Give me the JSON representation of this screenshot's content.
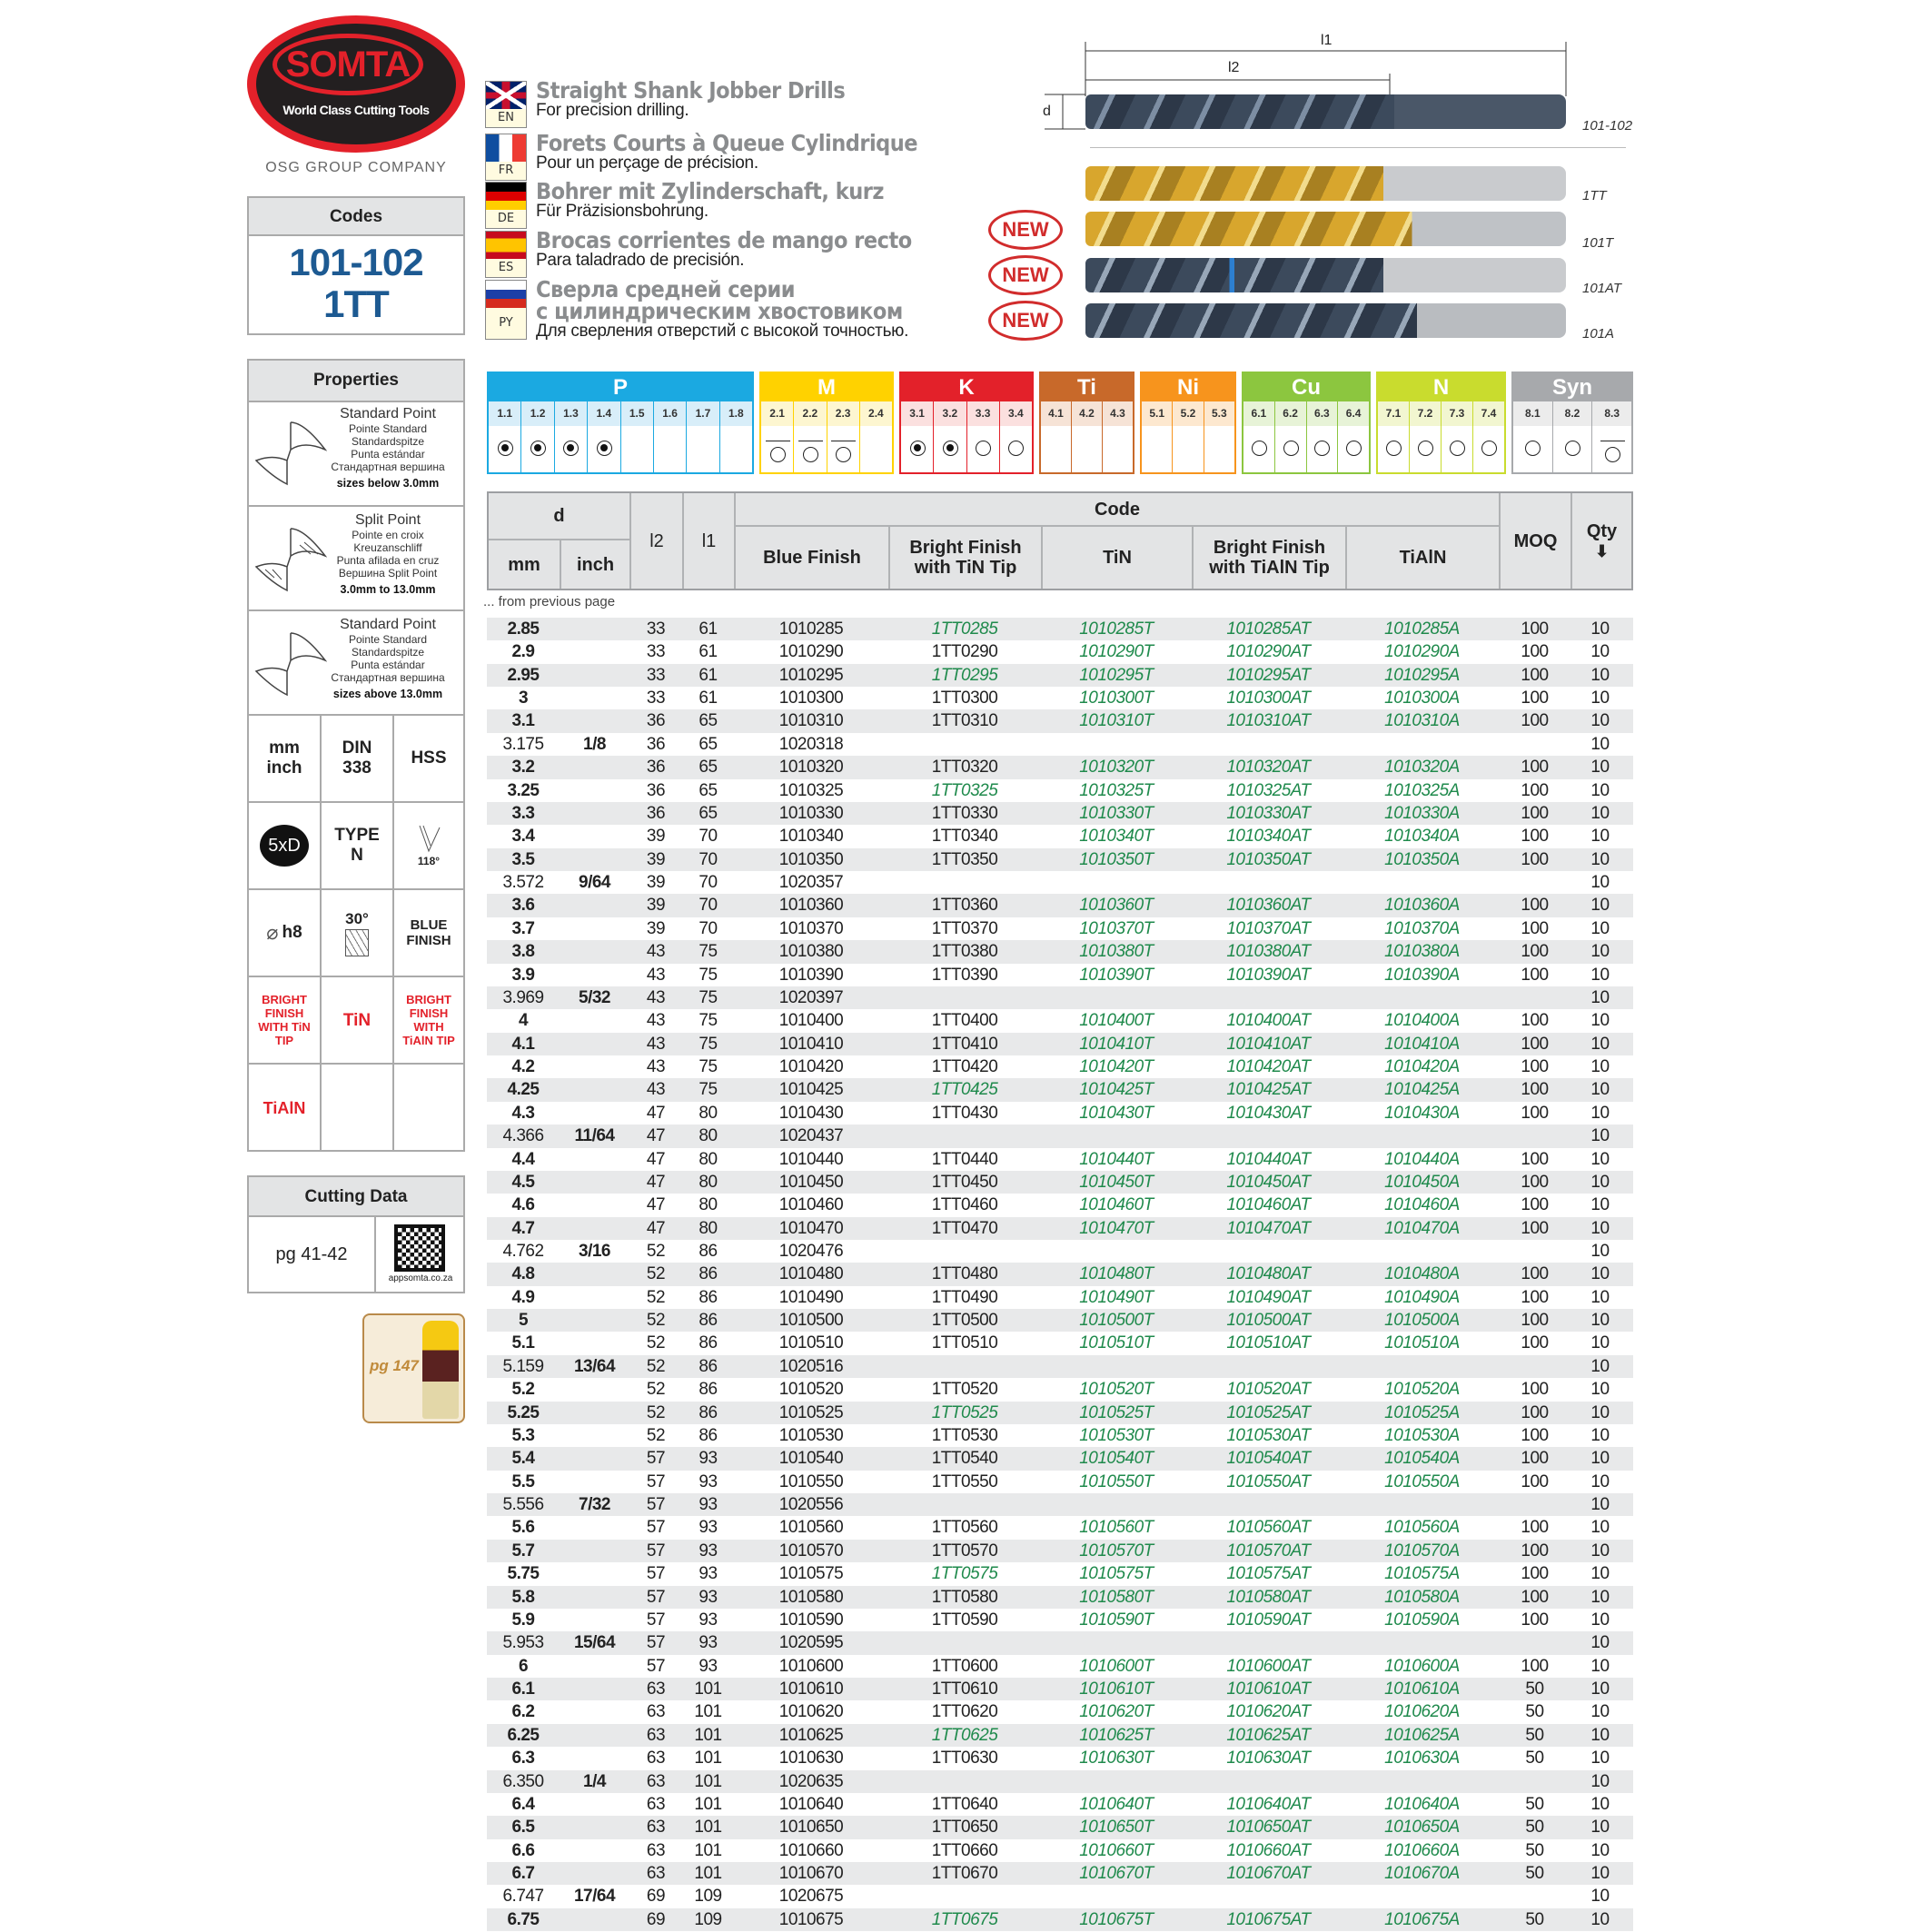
{
  "logo": {
    "brand": "SOMTA",
    "tagline": "World Class Cutting Tools",
    "group": "OSG GROUP COMPANY"
  },
  "codes": {
    "title": "Codes",
    "line1": "101-102",
    "line2": "1TT"
  },
  "titles": [
    {
      "lang": "EN",
      "title": "Straight Shank Jobber Drills",
      "subtitle": "For precision drilling."
    },
    {
      "lang": "FR",
      "title": "Forets Courts à Queue Cylindrique",
      "subtitle": "Pour un perçage de précision."
    },
    {
      "lang": "DE",
      "title": "Bohrer mit Zylinderschaft, kurz",
      "subtitle": "Für Präzisionsbohrung."
    },
    {
      "lang": "ES",
      "title": "Brocas corrientes de mango recto",
      "subtitle": "Para taladrado de precisión."
    },
    {
      "lang": "PY",
      "title": "Сверла средней серии",
      "title2": "с цилиндрическим хвостовиком",
      "subtitle": "Для сверления отверстий с высокой точностью."
    }
  ],
  "diagram": {
    "l1": "l1",
    "l2": "l2",
    "d": "d"
  },
  "drills": [
    {
      "label": "101-102",
      "new": false
    },
    {
      "label": "1TT",
      "new": false
    },
    {
      "label": "101T",
      "new": true
    },
    {
      "label": "101AT",
      "new": true
    },
    {
      "label": "101A",
      "new": true
    }
  ],
  "new_badge": "NEW",
  "properties": {
    "title": "Properties",
    "points": [
      {
        "name": "Standard Point",
        "fr": "Pointe Standard",
        "de": "Standardspitze",
        "es": "Punta estándar",
        "ru": "Стандартная вершина",
        "range": "sizes below 3.0mm"
      },
      {
        "name": "Split Point",
        "fr": "Pointe en croix",
        "de": "Kreuzanschliff",
        "es": "Punta afilada en cruz",
        "ru": "Вершина Split Point",
        "range": "3.0mm to 13.0mm"
      },
      {
        "name": "Standard Point",
        "fr": "Pointe Standard",
        "de": "Standardspitze",
        "es": "Punta estándar",
        "ru": "Стандартная вершина",
        "range": "sizes above 13.0mm"
      }
    ],
    "units": "mm inch",
    "standard": "DIN 338",
    "material": "HSS",
    "length": "5xD",
    "type": "TYPE N",
    "angle": "118°",
    "tolerance": "h8",
    "helix": "30°",
    "finish_blue": "BLUE FINISH",
    "finish_bright_tin": "BRIGHT FINISH WITH TiN TIP",
    "finish_tin": "TiN",
    "finish_bright_tialn": "BRIGHT FINISH WITH TiAlN TIP",
    "finish_tialn": "TiAlN"
  },
  "cutting_data": {
    "title": "Cutting Data",
    "pages": "pg 41-42",
    "qr_caption": "appsomta.co.za"
  },
  "spray": {
    "page": "pg 147"
  },
  "materials": [
    {
      "group": "P",
      "color": "#1ba9e1",
      "tint": "#d8eef9",
      "subs": [
        "1.1",
        "1.2",
        "1.3",
        "1.4",
        "1.5",
        "1.6",
        "1.7",
        "1.8"
      ],
      "marks": [
        "filled",
        "filled",
        "filled",
        "filled",
        "",
        "",
        "",
        ""
      ]
    },
    {
      "group": "M",
      "color": "#ffd200",
      "tint": "#fdf6d0",
      "subs": [
        "2.1",
        "2.2",
        "2.3",
        "2.4"
      ],
      "marks": [
        "open-under",
        "open-under",
        "open-under",
        ""
      ]
    },
    {
      "group": "K",
      "color": "#e3212a",
      "tint": "#fbe0df",
      "subs": [
        "3.1",
        "3.2",
        "3.3",
        "3.4"
      ],
      "marks": [
        "filled",
        "filled",
        "open",
        "open"
      ]
    },
    {
      "group": "Ti",
      "color": "#c8692a",
      "tint": "#f6e3d6",
      "subs": [
        "4.1",
        "4.2",
        "4.3"
      ],
      "marks": [
        "",
        "",
        ""
      ]
    },
    {
      "group": "Ni",
      "color": "#f7941d",
      "tint": "#fde8cf",
      "subs": [
        "5.1",
        "5.2",
        "5.3"
      ],
      "marks": [
        "",
        "",
        ""
      ]
    },
    {
      "group": "Cu",
      "color": "#8cc63f",
      "tint": "#e7f3d7",
      "subs": [
        "6.1",
        "6.2",
        "6.3",
        "6.4"
      ],
      "marks": [
        "open",
        "open",
        "open",
        "open"
      ]
    },
    {
      "group": "N",
      "color": "#c9dc2e",
      "tint": "#f2f6d0",
      "subs": [
        "7.1",
        "7.2",
        "7.3",
        "7.4"
      ],
      "marks": [
        "open",
        "open",
        "open",
        "open"
      ]
    },
    {
      "group": "Syn",
      "color": "#a7a9ac",
      "tint": "#ececec",
      "subs": [
        "8.1",
        "8.2",
        "8.3"
      ],
      "marks": [
        "open",
        "open",
        "open-under"
      ]
    }
  ],
  "table": {
    "headers": {
      "d": "d",
      "mm": "mm",
      "inch": "inch",
      "l2": "l2",
      "l1": "l1",
      "code": "Code",
      "blue": "Blue Finish",
      "bright_tin": "Bright Finish with TiN Tip",
      "tin": "TiN",
      "bright_tialn": "Bright Finish with TiAlN Tip",
      "tialn": "TiAlN",
      "moq": "MOQ",
      "qty": "Qty"
    },
    "from_previous": "... from previous page",
    "highlight_color": "#1f8a4c",
    "columns": [
      "mm",
      "inch",
      "l2",
      "l1",
      "blue",
      "bright_tin",
      "tin",
      "bright_tialn",
      "tialn",
      "moq",
      "qty",
      "tip_highlight"
    ],
    "rows": [
      [
        "2.85",
        "",
        "33",
        "61",
        "1010285",
        "1TT0285",
        "1010285T",
        "1010285AT",
        "1010285A",
        "100",
        "10",
        true
      ],
      [
        "2.9",
        "",
        "33",
        "61",
        "1010290",
        "1TT0290",
        "1010290T",
        "1010290AT",
        "1010290A",
        "100",
        "10",
        false
      ],
      [
        "2.95",
        "",
        "33",
        "61",
        "1010295",
        "1TT0295",
        "1010295T",
        "1010295AT",
        "1010295A",
        "100",
        "10",
        true
      ],
      [
        "3",
        "",
        "33",
        "61",
        "1010300",
        "1TT0300",
        "1010300T",
        "1010300AT",
        "1010300A",
        "100",
        "10",
        false
      ],
      [
        "3.1",
        "",
        "36",
        "65",
        "1010310",
        "1TT0310",
        "1010310T",
        "1010310AT",
        "1010310A",
        "100",
        "10",
        false
      ],
      [
        "3.175",
        "1/8",
        "36",
        "65",
        "1020318",
        "",
        "",
        "",
        "",
        "",
        "10",
        false
      ],
      [
        "3.2",
        "",
        "36",
        "65",
        "1010320",
        "1TT0320",
        "1010320T",
        "1010320AT",
        "1010320A",
        "100",
        "10",
        false
      ],
      [
        "3.25",
        "",
        "36",
        "65",
        "1010325",
        "1TT0325",
        "1010325T",
        "1010325AT",
        "1010325A",
        "100",
        "10",
        true
      ],
      [
        "3.3",
        "",
        "36",
        "65",
        "1010330",
        "1TT0330",
        "1010330T",
        "1010330AT",
        "1010330A",
        "100",
        "10",
        false
      ],
      [
        "3.4",
        "",
        "39",
        "70",
        "1010340",
        "1TT0340",
        "1010340T",
        "1010340AT",
        "1010340A",
        "100",
        "10",
        false
      ],
      [
        "3.5",
        "",
        "39",
        "70",
        "1010350",
        "1TT0350",
        "1010350T",
        "1010350AT",
        "1010350A",
        "100",
        "10",
        false
      ],
      [
        "3.572",
        "9/64",
        "39",
        "70",
        "1020357",
        "",
        "",
        "",
        "",
        "",
        "10",
        false
      ],
      [
        "3.6",
        "",
        "39",
        "70",
        "1010360",
        "1TT0360",
        "1010360T",
        "1010360AT",
        "1010360A",
        "100",
        "10",
        false
      ],
      [
        "3.7",
        "",
        "39",
        "70",
        "1010370",
        "1TT0370",
        "1010370T",
        "1010370AT",
        "1010370A",
        "100",
        "10",
        false
      ],
      [
        "3.8",
        "",
        "43",
        "75",
        "1010380",
        "1TT0380",
        "1010380T",
        "1010380AT",
        "1010380A",
        "100",
        "10",
        false
      ],
      [
        "3.9",
        "",
        "43",
        "75",
        "1010390",
        "1TT0390",
        "1010390T",
        "1010390AT",
        "1010390A",
        "100",
        "10",
        false
      ],
      [
        "3.969",
        "5/32",
        "43",
        "75",
        "1020397",
        "",
        "",
        "",
        "",
        "",
        "10",
        false
      ],
      [
        "4",
        "",
        "43",
        "75",
        "1010400",
        "1TT0400",
        "1010400T",
        "1010400AT",
        "1010400A",
        "100",
        "10",
        false
      ],
      [
        "4.1",
        "",
        "43",
        "75",
        "1010410",
        "1TT0410",
        "1010410T",
        "1010410AT",
        "1010410A",
        "100",
        "10",
        false
      ],
      [
        "4.2",
        "",
        "43",
        "75",
        "1010420",
        "1TT0420",
        "1010420T",
        "1010420AT",
        "1010420A",
        "100",
        "10",
        false
      ],
      [
        "4.25",
        "",
        "43",
        "75",
        "1010425",
        "1TT0425",
        "1010425T",
        "1010425AT",
        "1010425A",
        "100",
        "10",
        true
      ],
      [
        "4.3",
        "",
        "47",
        "80",
        "1010430",
        "1TT0430",
        "1010430T",
        "1010430AT",
        "1010430A",
        "100",
        "10",
        false
      ],
      [
        "4.366",
        "11/64",
        "47",
        "80",
        "1020437",
        "",
        "",
        "",
        "",
        "",
        "10",
        false
      ],
      [
        "4.4",
        "",
        "47",
        "80",
        "1010440",
        "1TT0440",
        "1010440T",
        "1010440AT",
        "1010440A",
        "100",
        "10",
        false
      ],
      [
        "4.5",
        "",
        "47",
        "80",
        "1010450",
        "1TT0450",
        "1010450T",
        "1010450AT",
        "1010450A",
        "100",
        "10",
        false
      ],
      [
        "4.6",
        "",
        "47",
        "80",
        "1010460",
        "1TT0460",
        "1010460T",
        "1010460AT",
        "1010460A",
        "100",
        "10",
        false
      ],
      [
        "4.7",
        "",
        "47",
        "80",
        "1010470",
        "1TT0470",
        "1010470T",
        "1010470AT",
        "1010470A",
        "100",
        "10",
        false
      ],
      [
        "4.762",
        "3/16",
        "52",
        "86",
        "1020476",
        "",
        "",
        "",
        "",
        "",
        "10",
        false
      ],
      [
        "4.8",
        "",
        "52",
        "86",
        "1010480",
        "1TT0480",
        "1010480T",
        "1010480AT",
        "1010480A",
        "100",
        "10",
        false
      ],
      [
        "4.9",
        "",
        "52",
        "86",
        "1010490",
        "1TT0490",
        "1010490T",
        "1010490AT",
        "1010490A",
        "100",
        "10",
        false
      ],
      [
        "5",
        "",
        "52",
        "86",
        "1010500",
        "1TT0500",
        "1010500T",
        "1010500AT",
        "1010500A",
        "100",
        "10",
        false
      ],
      [
        "5.1",
        "",
        "52",
        "86",
        "1010510",
        "1TT0510",
        "1010510T",
        "1010510AT",
        "1010510A",
        "100",
        "10",
        false
      ],
      [
        "5.159",
        "13/64",
        "52",
        "86",
        "1020516",
        "",
        "",
        "",
        "",
        "",
        "10",
        false
      ],
      [
        "5.2",
        "",
        "52",
        "86",
        "1010520",
        "1TT0520",
        "1010520T",
        "1010520AT",
        "1010520A",
        "100",
        "10",
        false
      ],
      [
        "5.25",
        "",
        "52",
        "86",
        "1010525",
        "1TT0525",
        "1010525T",
        "1010525AT",
        "1010525A",
        "100",
        "10",
        true
      ],
      [
        "5.3",
        "",
        "52",
        "86",
        "1010530",
        "1TT0530",
        "1010530T",
        "1010530AT",
        "1010530A",
        "100",
        "10",
        false
      ],
      [
        "5.4",
        "",
        "57",
        "93",
        "1010540",
        "1TT0540",
        "1010540T",
        "1010540AT",
        "1010540A",
        "100",
        "10",
        false
      ],
      [
        "5.5",
        "",
        "57",
        "93",
        "1010550",
        "1TT0550",
        "1010550T",
        "1010550AT",
        "1010550A",
        "100",
        "10",
        false
      ],
      [
        "5.556",
        "7/32",
        "57",
        "93",
        "1020556",
        "",
        "",
        "",
        "",
        "",
        "10",
        false
      ],
      [
        "5.6",
        "",
        "57",
        "93",
        "1010560",
        "1TT0560",
        "1010560T",
        "1010560AT",
        "1010560A",
        "100",
        "10",
        false
      ],
      [
        "5.7",
        "",
        "57",
        "93",
        "1010570",
        "1TT0570",
        "1010570T",
        "1010570AT",
        "1010570A",
        "100",
        "10",
        false
      ],
      [
        "5.75",
        "",
        "57",
        "93",
        "1010575",
        "1TT0575",
        "1010575T",
        "1010575AT",
        "1010575A",
        "100",
        "10",
        true
      ],
      [
        "5.8",
        "",
        "57",
        "93",
        "1010580",
        "1TT0580",
        "1010580T",
        "1010580AT",
        "1010580A",
        "100",
        "10",
        false
      ],
      [
        "5.9",
        "",
        "57",
        "93",
        "1010590",
        "1TT0590",
        "1010590T",
        "1010590AT",
        "1010590A",
        "100",
        "10",
        false
      ],
      [
        "5.953",
        "15/64",
        "57",
        "93",
        "1020595",
        "",
        "",
        "",
        "",
        "",
        "10",
        false
      ],
      [
        "6",
        "",
        "57",
        "93",
        "1010600",
        "1TT0600",
        "1010600T",
        "1010600AT",
        "1010600A",
        "100",
        "10",
        false
      ],
      [
        "6.1",
        "",
        "63",
        "101",
        "1010610",
        "1TT0610",
        "1010610T",
        "1010610AT",
        "1010610A",
        "50",
        "10",
        false
      ],
      [
        "6.2",
        "",
        "63",
        "101",
        "1010620",
        "1TT0620",
        "1010620T",
        "1010620AT",
        "1010620A",
        "50",
        "10",
        false
      ],
      [
        "6.25",
        "",
        "63",
        "101",
        "1010625",
        "1TT0625",
        "1010625T",
        "1010625AT",
        "1010625A",
        "50",
        "10",
        true
      ],
      [
        "6.3",
        "",
        "63",
        "101",
        "1010630",
        "1TT0630",
        "1010630T",
        "1010630AT",
        "1010630A",
        "50",
        "10",
        false
      ],
      [
        "6.350",
        "1/4",
        "63",
        "101",
        "1020635",
        "",
        "",
        "",
        "",
        "",
        "10",
        false
      ],
      [
        "6.4",
        "",
        "63",
        "101",
        "1010640",
        "1TT0640",
        "1010640T",
        "1010640AT",
        "1010640A",
        "50",
        "10",
        false
      ],
      [
        "6.5",
        "",
        "63",
        "101",
        "1010650",
        "1TT0650",
        "1010650T",
        "1010650AT",
        "1010650A",
        "50",
        "10",
        false
      ],
      [
        "6.6",
        "",
        "63",
        "101",
        "1010660",
        "1TT0660",
        "1010660T",
        "1010660AT",
        "1010660A",
        "50",
        "10",
        false
      ],
      [
        "6.7",
        "",
        "63",
        "101",
        "1010670",
        "1TT0670",
        "1010670T",
        "1010670AT",
        "1010670A",
        "50",
        "10",
        false
      ],
      [
        "6.747",
        "17/64",
        "69",
        "109",
        "1020675",
        "",
        "",
        "",
        "",
        "",
        "10",
        false
      ],
      [
        "6.75",
        "",
        "69",
        "109",
        "1010675",
        "1TT0675",
        "1010675T",
        "1010675AT",
        "1010675A",
        "50",
        "10",
        true
      ]
    ]
  }
}
